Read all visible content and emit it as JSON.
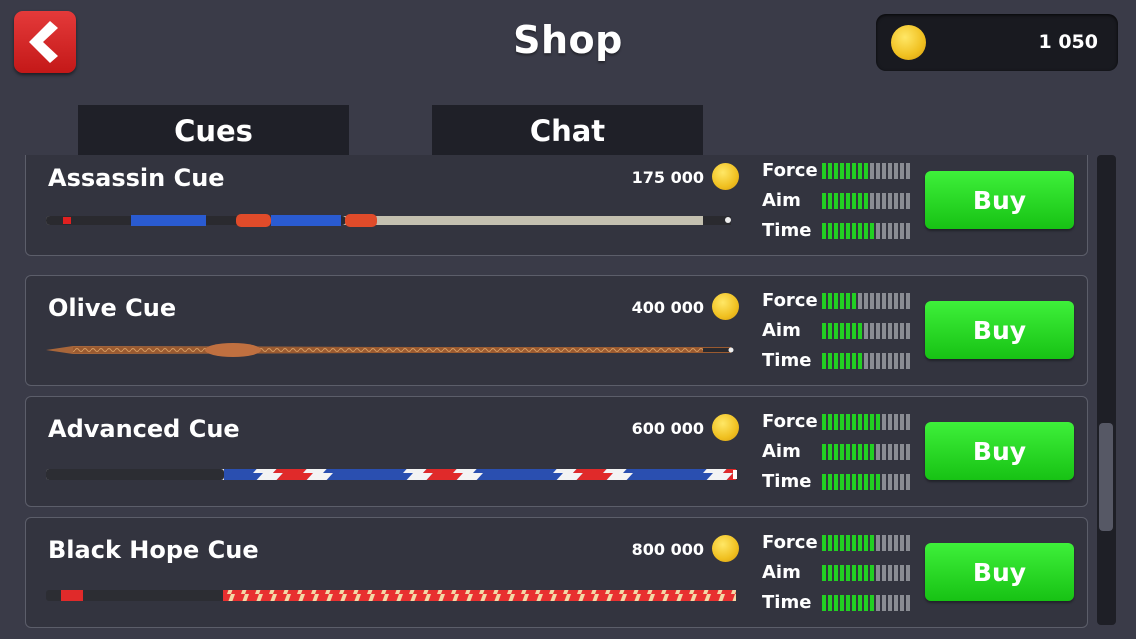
{
  "header": {
    "title": "Shop",
    "coins": "1 050"
  },
  "tabs": [
    {
      "label": "Cues"
    },
    {
      "label": "Chat"
    }
  ],
  "stat_labels": {
    "force": "Force",
    "aim": "Aim",
    "time": "Time"
  },
  "stat_max": 15,
  "colors": {
    "buy_button": "#22d022",
    "stat_on": "#22d022",
    "stat_off": "#8a8c93",
    "back_button": "#d42020"
  },
  "cues": [
    {
      "name": "Assassin Cue",
      "price": "175 000",
      "force": 8,
      "aim": 8,
      "time": 9,
      "buy_label": "Buy"
    },
    {
      "name": "Olive Cue",
      "price": "400 000",
      "force": 6,
      "aim": 7,
      "time": 7,
      "buy_label": "Buy"
    },
    {
      "name": "Advanced Cue",
      "price": "600 000",
      "force": 10,
      "aim": 9,
      "time": 10,
      "buy_label": "Buy"
    },
    {
      "name": "Black Hope Cue",
      "price": "800 000",
      "force": 9,
      "aim": 9,
      "time": 9,
      "buy_label": "Buy"
    }
  ]
}
